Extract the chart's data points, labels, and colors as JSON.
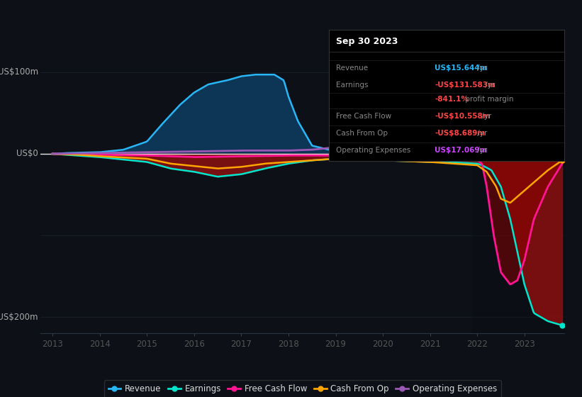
{
  "background_color": "#0d1117",
  "plot_bg_color": "#0d1117",
  "ylim": [
    -220,
    130
  ],
  "colors": {
    "revenue": "#29b6f6",
    "revenue_fill": "#0d3a5c",
    "earnings": "#00e5cc",
    "earnings_fill": "#8b1010",
    "free_cash_flow": "#ff1493",
    "cash_from_op": "#ffa500",
    "op_expenses": "#9b59b6"
  },
  "infobox": {
    "date": "Sep 30 2023",
    "rows": [
      {
        "label": "Revenue",
        "value": "US$15.644m",
        "value_color": "#29b6f6",
        "suffix": " /yr"
      },
      {
        "label": "Earnings",
        "value": "-US$131.583m",
        "value_color": "#ff4444",
        "suffix": " /yr"
      },
      {
        "label": "",
        "value": "-841.1%",
        "value_color": "#ff4444",
        "suffix": " profit margin"
      },
      {
        "label": "Free Cash Flow",
        "value": "-US$10.558m",
        "value_color": "#ff4444",
        "suffix": " /yr"
      },
      {
        "label": "Cash From Op",
        "value": "-US$8.689m",
        "value_color": "#ff4444",
        "suffix": " /yr"
      },
      {
        "label": "Operating Expenses",
        "value": "US$17.069m",
        "value_color": "#cc44ff",
        "suffix": " /yr"
      }
    ]
  },
  "legend": [
    {
      "label": "Revenue",
      "color": "#29b6f6"
    },
    {
      "label": "Earnings",
      "color": "#00e5cc"
    },
    {
      "label": "Free Cash Flow",
      "color": "#ff1493"
    },
    {
      "label": "Cash From Op",
      "color": "#ffa500"
    },
    {
      "label": "Operating Expenses",
      "color": "#9b59b6"
    }
  ]
}
